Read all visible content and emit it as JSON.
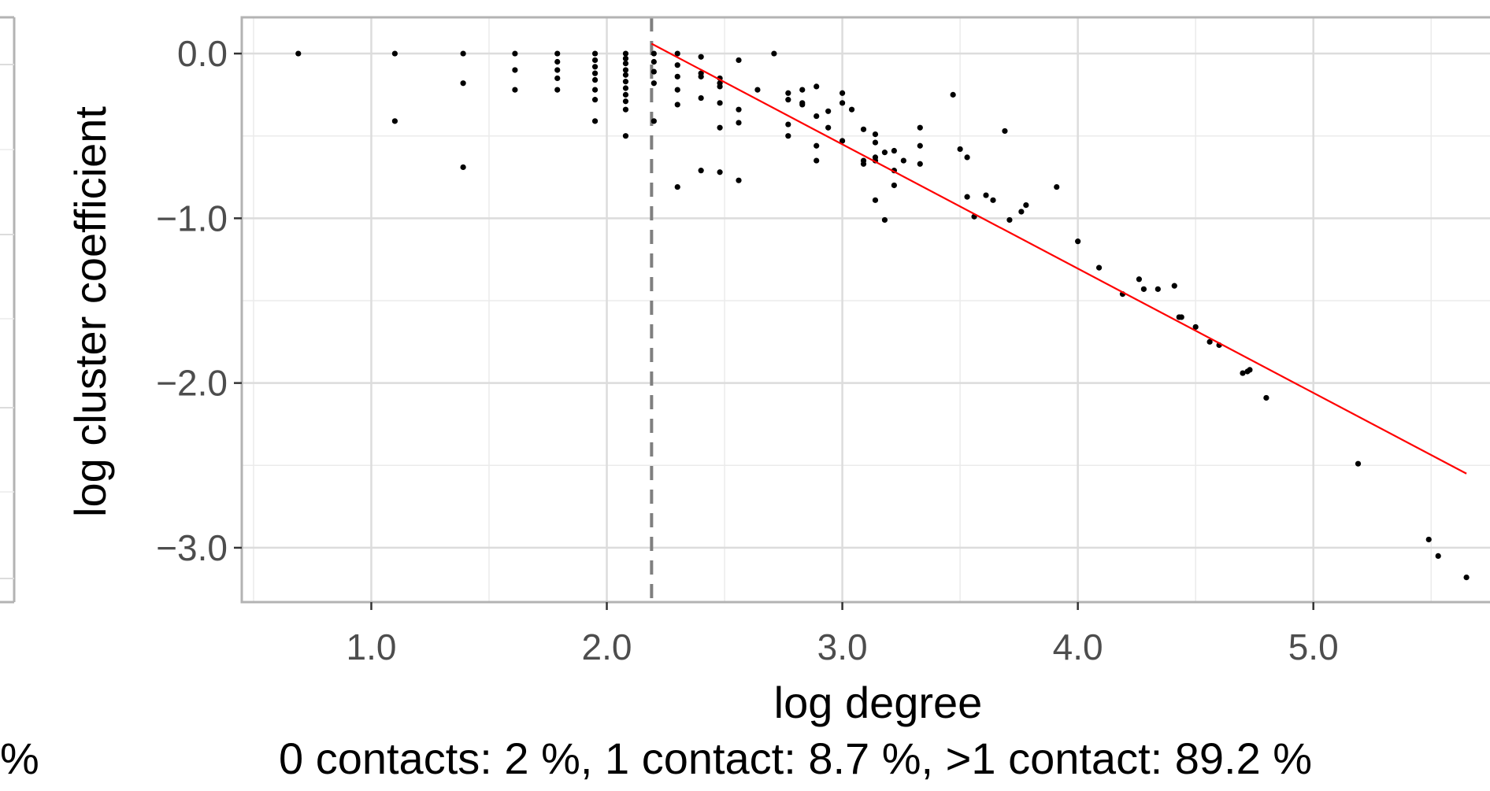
{
  "chart_data": {
    "type": "scatter",
    "xlabel": "log degree",
    "ylabel": "log cluster coefficient",
    "caption": "0 contacts: 2 %, 1 contact: 8.7 %, >1 contact: 89.2 %",
    "left_panel_caption_fragment": "%",
    "xlim": [
      0.45,
      5.75
    ],
    "ylim": [
      -3.33,
      0.22
    ],
    "x_ticks": [
      1.0,
      2.0,
      3.0,
      4.0,
      5.0
    ],
    "x_tick_labels": [
      "1.0",
      "2.0",
      "3.0",
      "4.0",
      "5.0"
    ],
    "y_ticks": [
      0.0,
      -1.0,
      -2.0,
      -3.0
    ],
    "y_tick_labels": [
      "0.0",
      "−1.0",
      "−2.0",
      "−3.0"
    ],
    "grid": true,
    "vline_x": 2.19,
    "fit_line": {
      "x": [
        2.19,
        5.65
      ],
      "y": [
        0.06,
        -2.55
      ]
    },
    "colors": {
      "points": "#000000",
      "fit": "#ff0000",
      "vline": "#7f7f7f",
      "grid": "#ebebeb",
      "border": "#b3b3b3"
    },
    "points": [
      [
        0.69,
        0.0
      ],
      [
        1.1,
        0.0
      ],
      [
        1.1,
        -0.41
      ],
      [
        1.39,
        0.0
      ],
      [
        1.39,
        -0.18
      ],
      [
        1.39,
        -0.69
      ],
      [
        1.61,
        0.0
      ],
      [
        1.61,
        -0.1
      ],
      [
        1.61,
        -0.22
      ],
      [
        1.79,
        0.0
      ],
      [
        1.79,
        -0.05
      ],
      [
        1.79,
        -0.1
      ],
      [
        1.79,
        -0.15
      ],
      [
        1.79,
        -0.22
      ],
      [
        1.95,
        0.0
      ],
      [
        1.95,
        -0.04
      ],
      [
        1.95,
        -0.08
      ],
      [
        1.95,
        -0.12
      ],
      [
        1.95,
        -0.16
      ],
      [
        1.95,
        -0.22
      ],
      [
        1.95,
        -0.28
      ],
      [
        1.95,
        -0.41
      ],
      [
        2.08,
        0.0
      ],
      [
        2.08,
        -0.03
      ],
      [
        2.08,
        -0.06
      ],
      [
        2.08,
        -0.1
      ],
      [
        2.08,
        -0.13
      ],
      [
        2.08,
        -0.17
      ],
      [
        2.08,
        -0.21
      ],
      [
        2.08,
        -0.25
      ],
      [
        2.08,
        -0.29
      ],
      [
        2.08,
        -0.34
      ],
      [
        2.08,
        -0.5
      ],
      [
        2.2,
        0.0
      ],
      [
        2.2,
        -0.05
      ],
      [
        2.2,
        -0.11
      ],
      [
        2.2,
        -0.18
      ],
      [
        2.2,
        -0.41
      ],
      [
        2.3,
        0.0
      ],
      [
        2.3,
        -0.07
      ],
      [
        2.3,
        -0.14
      ],
      [
        2.3,
        -0.22
      ],
      [
        2.3,
        -0.31
      ],
      [
        2.3,
        -0.81
      ],
      [
        2.4,
        -0.02
      ],
      [
        2.4,
        -0.12
      ],
      [
        2.4,
        -0.14
      ],
      [
        2.4,
        -0.27
      ],
      [
        2.4,
        -0.71
      ],
      [
        2.48,
        -0.15
      ],
      [
        2.48,
        -0.18
      ],
      [
        2.48,
        -0.2
      ],
      [
        2.48,
        -0.3
      ],
      [
        2.48,
        -0.45
      ],
      [
        2.48,
        -0.72
      ],
      [
        2.56,
        -0.04
      ],
      [
        2.56,
        -0.34
      ],
      [
        2.56,
        -0.42
      ],
      [
        2.56,
        -0.77
      ],
      [
        2.64,
        -0.22
      ],
      [
        2.71,
        0.0
      ],
      [
        2.77,
        -0.24
      ],
      [
        2.77,
        -0.28
      ],
      [
        2.77,
        -0.43
      ],
      [
        2.77,
        -0.5
      ],
      [
        2.83,
        -0.22
      ],
      [
        2.83,
        -0.3
      ],
      [
        2.83,
        -0.31
      ],
      [
        2.89,
        -0.2
      ],
      [
        2.89,
        -0.38
      ],
      [
        2.89,
        -0.56
      ],
      [
        2.89,
        -0.65
      ],
      [
        2.94,
        -0.35
      ],
      [
        2.94,
        -0.45
      ],
      [
        3.0,
        -0.24
      ],
      [
        3.0,
        -0.3
      ],
      [
        3.0,
        -0.53
      ],
      [
        3.04,
        -0.34
      ],
      [
        3.09,
        -0.46
      ],
      [
        3.09,
        -0.65
      ],
      [
        3.09,
        -0.67
      ],
      [
        3.14,
        -0.49
      ],
      [
        3.14,
        -0.54
      ],
      [
        3.14,
        -0.63
      ],
      [
        3.14,
        -0.65
      ],
      [
        3.14,
        -0.89
      ],
      [
        3.18,
        -0.6
      ],
      [
        3.18,
        -1.01
      ],
      [
        3.22,
        -0.59
      ],
      [
        3.22,
        -0.71
      ],
      [
        3.22,
        -0.8
      ],
      [
        3.26,
        -0.65
      ],
      [
        3.33,
        -0.45
      ],
      [
        3.33,
        -0.56
      ],
      [
        3.33,
        -0.67
      ],
      [
        3.47,
        -0.25
      ],
      [
        3.5,
        -0.58
      ],
      [
        3.53,
        -0.63
      ],
      [
        3.53,
        -0.87
      ],
      [
        3.56,
        -0.99
      ],
      [
        3.61,
        -0.86
      ],
      [
        3.64,
        -0.89
      ],
      [
        3.69,
        -0.47
      ],
      [
        3.71,
        -1.01
      ],
      [
        3.76,
        -0.96
      ],
      [
        3.78,
        -0.92
      ],
      [
        3.91,
        -0.81
      ],
      [
        4.0,
        -1.14
      ],
      [
        4.09,
        -1.3
      ],
      [
        4.19,
        -1.46
      ],
      [
        4.26,
        -1.37
      ],
      [
        4.28,
        -1.43
      ],
      [
        4.34,
        -1.43
      ],
      [
        4.41,
        -1.41
      ],
      [
        4.43,
        -1.6
      ],
      [
        4.44,
        -1.6
      ],
      [
        4.5,
        -1.66
      ],
      [
        4.56,
        -1.75
      ],
      [
        4.6,
        -1.77
      ],
      [
        4.7,
        -1.94
      ],
      [
        4.72,
        -1.93
      ],
      [
        4.73,
        -1.92
      ],
      [
        4.8,
        -2.09
      ],
      [
        5.19,
        -2.49
      ],
      [
        5.49,
        -2.95
      ],
      [
        5.53,
        -3.05
      ],
      [
        5.65,
        -3.18
      ]
    ]
  }
}
